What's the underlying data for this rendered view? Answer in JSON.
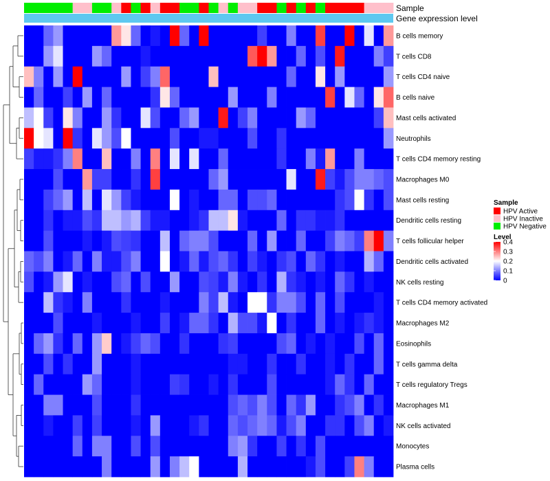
{
  "chart_data": {
    "type": "heatmap",
    "annotation_labels": [
      "Sample",
      "Gene expression level"
    ],
    "samples": [
      "N",
      "N",
      "N",
      "N",
      "N",
      "I",
      "I",
      "N",
      "N",
      "I",
      "A",
      "N",
      "A",
      "I",
      "A",
      "A",
      "N",
      "N",
      "A",
      "N",
      "I",
      "N",
      "I",
      "I",
      "A",
      "A",
      "N",
      "A",
      "N",
      "A",
      "N",
      "A",
      "A",
      "A",
      "A",
      "I",
      "I",
      "I"
    ],
    "sample_legend": {
      "title": "Sample",
      "items": [
        {
          "code": "A",
          "label": "HPV Active",
          "color": "#ff0000"
        },
        {
          "code": "I",
          "label": "HPV Inactive",
          "color": "#ffc0cb"
        },
        {
          "code": "N",
          "label": "HPV Negative",
          "color": "#00ee00"
        }
      ]
    },
    "gene_bar_color": "#5ec8f0",
    "rows": [
      "B cells memory",
      "T cells CD8",
      "T cells CD4 naive",
      "B cells naive",
      "Mast cells activated",
      "Neutrophils",
      "T cells CD4 memory resting",
      "Macrophages M0",
      "Mast cells resting",
      "Dendritic cells resting",
      "T cells follicular helper",
      "Dendritic cells activated",
      "NK cells resting",
      "T cells CD4 memory activated",
      "Macrophages M2",
      "Eosinophils",
      "T cells gamma delta",
      "T cells regulatory  Tregs",
      "Macrophages M1",
      "NK cells activated",
      "Monocytes",
      "Plasma cells"
    ],
    "matrix": [
      [
        0,
        0,
        0.08,
        0.12,
        0,
        0,
        0,
        0,
        0,
        0.28,
        0.22,
        0.08,
        0,
        0.02,
        0,
        0.4,
        0.08,
        0,
        0.4,
        0,
        0,
        0,
        0,
        0,
        0.05,
        0,
        0,
        0.1,
        0,
        0,
        0.35,
        0,
        0,
        0.4,
        0,
        0.18,
        0,
        0.28
      ],
      [
        0,
        0,
        0.12,
        0.18,
        0,
        0,
        0,
        0.12,
        0.08,
        0,
        0,
        0,
        0.02,
        0,
        0,
        0,
        0,
        0,
        0,
        0,
        0,
        0,
        0,
        0.33,
        0.4,
        0.28,
        0,
        0,
        0.08,
        0,
        0.06,
        0,
        0.38,
        0,
        0,
        0,
        0.1,
        0.05
      ],
      [
        0.25,
        0.1,
        0,
        0.12,
        0,
        0.4,
        0,
        0,
        0,
        0,
        0.12,
        0,
        0.05,
        0.1,
        0.32,
        0,
        0,
        0,
        0,
        0.25,
        0,
        0,
        0,
        0,
        0,
        0,
        0,
        0.08,
        0,
        0,
        0.22,
        0,
        0.12,
        0,
        0,
        0,
        0,
        0.12
      ],
      [
        0,
        0.08,
        0,
        0,
        0.05,
        0,
        0.12,
        0,
        0.08,
        0,
        0,
        0,
        0,
        0.04,
        0.22,
        0.08,
        0,
        0,
        0,
        0,
        0,
        0.12,
        0,
        0,
        0,
        0.1,
        0,
        0,
        0,
        0,
        0,
        0.35,
        0,
        0.18,
        0.08,
        0,
        0.22,
        0.32
      ],
      [
        0.15,
        0.2,
        0.05,
        0,
        0.22,
        0.1,
        0,
        0,
        0.12,
        0.04,
        0,
        0,
        0.18,
        0.06,
        0,
        0,
        0.08,
        0.12,
        0,
        0,
        0.38,
        0,
        0.05,
        0.1,
        0,
        0,
        0,
        0,
        0.12,
        0.08,
        0,
        0,
        0,
        0,
        0,
        0,
        0.05,
        0.25
      ],
      [
        0.4,
        0.2,
        0.18,
        0,
        0.4,
        0.04,
        0,
        0.18,
        0.12,
        0.06,
        0.2,
        0,
        0,
        0,
        0,
        0.06,
        0,
        0,
        0.02,
        0.02,
        0,
        0,
        0,
        0.06,
        0,
        0,
        0.04,
        0,
        0,
        0,
        0,
        0,
        0,
        0,
        0,
        0,
        0,
        0.12
      ],
      [
        0.05,
        0.02,
        0.02,
        0.04,
        0.1,
        0.3,
        0,
        0,
        0.25,
        0,
        0,
        0.1,
        0,
        0.3,
        0,
        0.18,
        0,
        0.18,
        0,
        0,
        0.08,
        0,
        0,
        0,
        0,
        0,
        0.04,
        0,
        0,
        0.1,
        0.02,
        0.28,
        0,
        0,
        0.1,
        0,
        0,
        0
      ],
      [
        0,
        0,
        0,
        0.06,
        0,
        0,
        0.28,
        0.05,
        0.05,
        0,
        0,
        0.04,
        0,
        0.35,
        0,
        0,
        0,
        0,
        0,
        0.08,
        0.12,
        0,
        0,
        0,
        0,
        0,
        0,
        0.18,
        0,
        0,
        0.38,
        0.05,
        0.02,
        0.06,
        0.1,
        0.1,
        0.08,
        0.06
      ],
      [
        0,
        0,
        0.05,
        0.08,
        0.12,
        0,
        0.15,
        0,
        0.18,
        0.12,
        0.05,
        0.02,
        0,
        0,
        0,
        0.2,
        0,
        0.02,
        0,
        0,
        0.08,
        0.08,
        0,
        0.06,
        0.06,
        0.08,
        0,
        0,
        0,
        0,
        0,
        0,
        0.04,
        0.06,
        0.2,
        0.04,
        0,
        0.06
      ],
      [
        0,
        0,
        0.04,
        0,
        0.02,
        0.02,
        0.06,
        0.04,
        0.15,
        0.15,
        0.12,
        0.14,
        0.05,
        0.02,
        0.02,
        0,
        0,
        0.02,
        0.04,
        0.15,
        0.15,
        0.22,
        0.02,
        0,
        0,
        0,
        0.08,
        0,
        0.04,
        0.04,
        0.02,
        0.02,
        0.04,
        0,
        0,
        0,
        0,
        0
      ],
      [
        0,
        0,
        0.06,
        0,
        0,
        0,
        0.02,
        0,
        0.02,
        0.06,
        0.05,
        0.04,
        0,
        0,
        0.15,
        0,
        0.08,
        0.1,
        0.1,
        0.06,
        0,
        0,
        0,
        0.08,
        0,
        0.12,
        0,
        0,
        0.08,
        0,
        0,
        0.05,
        0.1,
        0.08,
        0.05,
        0.3,
        0.4,
        0.1
      ],
      [
        0.08,
        0.06,
        0.1,
        0,
        0.02,
        0.08,
        0,
        0.1,
        0.02,
        0.02,
        0.06,
        0.1,
        0,
        0,
        0.2,
        0,
        0.02,
        0.08,
        0.02,
        0.06,
        0.08,
        0.04,
        0,
        0.05,
        0.02,
        0,
        0.04,
        0.06,
        0,
        0.08,
        0.04,
        0,
        0.02,
        0,
        0,
        0.14,
        0.08,
        0
      ],
      [
        0.06,
        0,
        0.02,
        0.12,
        0.18,
        0,
        0.02,
        0,
        0,
        0.06,
        0.08,
        0,
        0.06,
        0,
        0,
        0.12,
        0,
        0,
        0.06,
        0.05,
        0.02,
        0.1,
        0.02,
        0,
        0.04,
        0,
        0.14,
        0.04,
        0.02,
        0,
        0.02,
        0,
        0.08,
        0.04,
        0,
        0.02,
        0,
        0
      ],
      [
        0,
        0,
        0.15,
        0.04,
        0.02,
        0,
        0.1,
        0,
        0,
        0,
        0.04,
        0,
        0,
        0,
        0.02,
        0,
        0,
        0,
        0.1,
        0.05,
        0.15,
        0.02,
        0,
        0.2,
        0.2,
        0.04,
        0.1,
        0.1,
        0.06,
        0,
        0.08,
        0,
        0.06,
        0,
        0,
        0,
        0.02,
        0
      ],
      [
        0,
        0,
        0,
        0.06,
        0,
        0,
        0,
        0.02,
        0,
        0,
        0,
        0.02,
        0,
        0,
        0.05,
        0,
        0.02,
        0.08,
        0.08,
        0.04,
        0,
        0.14,
        0.06,
        0.06,
        0.02,
        0.2,
        0,
        0.04,
        0,
        0,
        0.08,
        0,
        0.02,
        0,
        0.02,
        0.04,
        0.02,
        0
      ],
      [
        0,
        0.08,
        0.12,
        0.04,
        0,
        0.08,
        0,
        0.12,
        0.24,
        0,
        0.02,
        0.05,
        0.08,
        0.06,
        0,
        0,
        0.04,
        0,
        0,
        0,
        0.04,
        0.05,
        0,
        0,
        0,
        0,
        0.06,
        0.08,
        0,
        0.02,
        0,
        0.02,
        0,
        0,
        0.06,
        0,
        0.08,
        0
      ],
      [
        0,
        0,
        0.06,
        0,
        0.04,
        0,
        0,
        0.12,
        0,
        0,
        0,
        0.02,
        0,
        0,
        0,
        0,
        0,
        0,
        0,
        0,
        0,
        0.02,
        0.02,
        0,
        0,
        0.04,
        0,
        0,
        0.04,
        0,
        0,
        0.02,
        0,
        0.04,
        0,
        0,
        0.08,
        0
      ],
      [
        0,
        0.08,
        0,
        0,
        0,
        0,
        0.12,
        0.08,
        0,
        0,
        0,
        0.02,
        0,
        0,
        0,
        0.05,
        0.04,
        0,
        0,
        0.02,
        0,
        0.04,
        0,
        0,
        0,
        0.06,
        0,
        0,
        0,
        0,
        0,
        0.02,
        0.08,
        0.04,
        0,
        0.08,
        0,
        0
      ],
      [
        0,
        0,
        0.1,
        0.1,
        0,
        0,
        0,
        0.06,
        0,
        0,
        0,
        0.04,
        0,
        0,
        0,
        0,
        0,
        0,
        0,
        0,
        0,
        0.06,
        0.08,
        0.06,
        0.1,
        0.06,
        0,
        0.08,
        0.04,
        0.12,
        0,
        0,
        0.04,
        0.06,
        0.1,
        0,
        0.04,
        0
      ],
      [
        0,
        0,
        0.02,
        0,
        0,
        0.05,
        0,
        0.05,
        0,
        0,
        0,
        0.02,
        0,
        0.12,
        0,
        0,
        0,
        0.02,
        0.04,
        0,
        0,
        0.08,
        0.06,
        0.08,
        0.1,
        0.08,
        0.02,
        0.06,
        0.1,
        0,
        0,
        0.04,
        0.04,
        0,
        0.06,
        0.1,
        0,
        0.02
      ],
      [
        0,
        0,
        0,
        0,
        0,
        0.08,
        0,
        0.1,
        0.1,
        0,
        0,
        0.06,
        0,
        0.06,
        0,
        0,
        0,
        0,
        0,
        0,
        0,
        0.1,
        0.12,
        0.04,
        0,
        0,
        0.05,
        0,
        0.04,
        0,
        0.06,
        0,
        0,
        0,
        0,
        0,
        0,
        0
      ],
      [
        0,
        0,
        0,
        0,
        0,
        0,
        0,
        0,
        0.1,
        0,
        0,
        0,
        0,
        0.12,
        0,
        0.1,
        0.15,
        0.2,
        0,
        0,
        0,
        0,
        0.14,
        0,
        0,
        0,
        0,
        0,
        0,
        0.02,
        0.06,
        0,
        0,
        0.05,
        0.3,
        0.1,
        0,
        0
      ]
    ],
    "level_legend": {
      "title": "Level",
      "ticks": [
        0.4,
        0.3,
        0.2,
        0.1,
        0
      ],
      "range": [
        0,
        0.4
      ],
      "low_color": "#0000ff",
      "mid_color": "#ffffff",
      "high_color": "#ff0000"
    }
  }
}
